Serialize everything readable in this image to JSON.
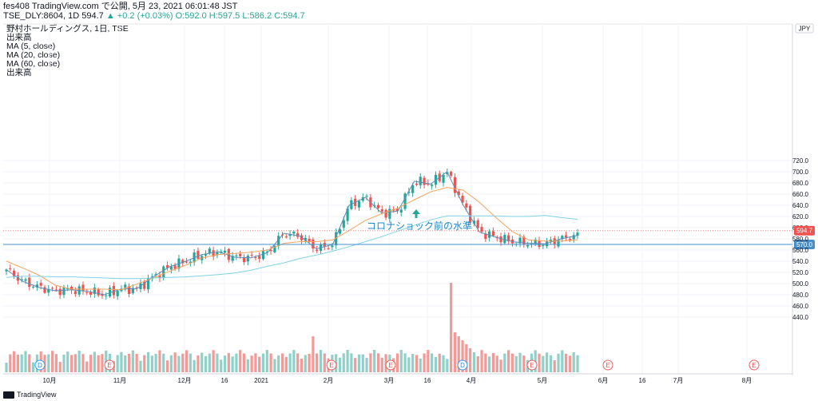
{
  "header": {
    "publisher_line": "fes408 TradingView.com で公開, 5月 23, 2021 06:01:48 JST",
    "symbol_line": "TSE_DLY:8604, 1D 594.7",
    "change": "+0.2 (+0.03%)",
    "ohlc": "O:592.0 H:597.5 L:586.2 C:594.7"
  },
  "legend": [
    "野村ホールディングス, 1日, TSE",
    "出来高",
    "MA (5, close)",
    "MA (20, close)",
    "MA (60, close)",
    "出来高"
  ],
  "footer": {
    "brand": "TradingView"
  },
  "colors": {
    "up": "#26a69a",
    "down": "#ef5350",
    "ma5": "#5b8db8",
    "ma20": "#f7a35c",
    "ma60": "#7fd3e6",
    "hline": "#4a90c8"
  },
  "chart_data": {
    "type": "candlestick",
    "currency": "JPY",
    "y_ticks": [
      440,
      460,
      480,
      500,
      520,
      540,
      560,
      580,
      600,
      620,
      640,
      660,
      680,
      700,
      720
    ],
    "x_ticks": [
      "10月",
      "11月",
      "12月",
      "16",
      "2021",
      "2月",
      "3月",
      "16",
      "4月",
      "5月",
      "6月",
      "16",
      "7月",
      "8月"
    ],
    "last_price_label": "594.7",
    "horizontal_line": {
      "value": 570,
      "label": "570.0"
    },
    "annotation": "コロナショック前の水準",
    "event_markers": [
      "D",
      "E",
      "E",
      "E",
      "D",
      "E",
      "E",
      "E"
    ],
    "series": [
      {
        "name": "MA (5, close)",
        "values": [
          525,
          504,
          493,
          487,
          489,
          486,
          480,
          490,
          491,
          512,
          530,
          540,
          552,
          557,
          547,
          546,
          555,
          590,
          585,
          562,
          570,
          640,
          654,
          626,
          630,
          683,
          678,
          700,
          640,
          592,
          583,
          575,
          572,
          571,
          580,
          586
        ]
      },
      {
        "name": "MA (20, close)",
        "values": [
          540,
          528,
          515,
          497,
          490,
          490,
          490,
          489,
          499,
          510,
          522,
          533,
          546,
          552,
          554,
          556,
          560,
          572,
          575,
          575,
          578,
          595,
          613,
          625,
          635,
          650,
          664,
          672,
          667,
          645,
          618,
          593,
          578,
          576,
          576,
          578
        ]
      },
      {
        "name": "MA (60, close)",
        "values": [
          511,
          513,
          513,
          512,
          512,
          511,
          510,
          509,
          509,
          510,
          511,
          512,
          514,
          516,
          519,
          524,
          531,
          537,
          545,
          551,
          558,
          566,
          575,
          584,
          594,
          604,
          614,
          621,
          621,
          621,
          621,
          620,
          620,
          622,
          618,
          615
        ]
      }
    ]
  }
}
